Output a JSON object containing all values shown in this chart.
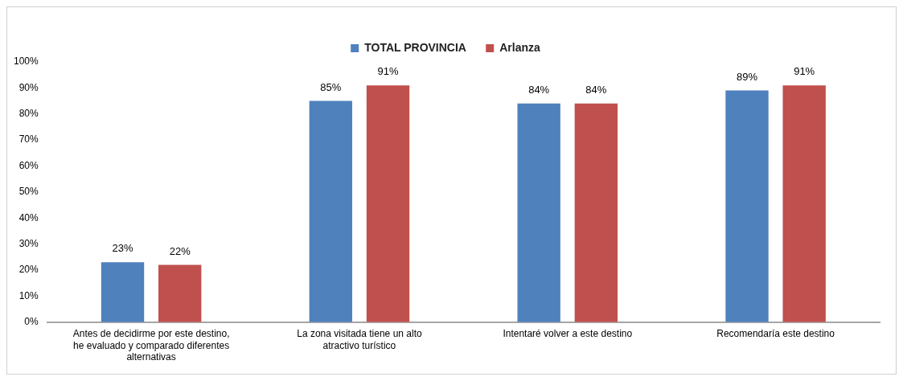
{
  "chart_data": {
    "type": "bar",
    "categories": [
      "Antes de decidirme por este destino, he evaluado y comparado diferentes alternativas",
      "La zona visitada tiene un alto atractivo turístico",
      "Intentaré volver a este destino",
      "Recomendaría este destino"
    ],
    "series": [
      {
        "name": "TOTAL PROVINCIA",
        "color": "#4f81bd",
        "values": [
          23,
          85,
          84,
          89
        ],
        "value_labels": [
          "23%",
          "85%",
          "84%",
          "89%"
        ]
      },
      {
        "name": "Arlanza",
        "color": "#c0504d",
        "values": [
          22,
          91,
          84,
          91
        ],
        "value_labels": [
          "22%",
          "91%",
          "84%",
          "91%"
        ]
      }
    ],
    "ylim": [
      0,
      100
    ],
    "yticks": [
      {
        "value": 0,
        "label": "0%"
      },
      {
        "value": 10,
        "label": "10%"
      },
      {
        "value": 20,
        "label": "20%"
      },
      {
        "value": 30,
        "label": "30%"
      },
      {
        "value": 40,
        "label": "40%"
      },
      {
        "value": 50,
        "label": "50%"
      },
      {
        "value": 60,
        "label": "60%"
      },
      {
        "value": 70,
        "label": "70%"
      },
      {
        "value": 80,
        "label": "80%"
      },
      {
        "value": 90,
        "label": "90%"
      },
      {
        "value": 100,
        "label": "100%"
      }
    ],
    "grid": false,
    "legend": "top"
  }
}
